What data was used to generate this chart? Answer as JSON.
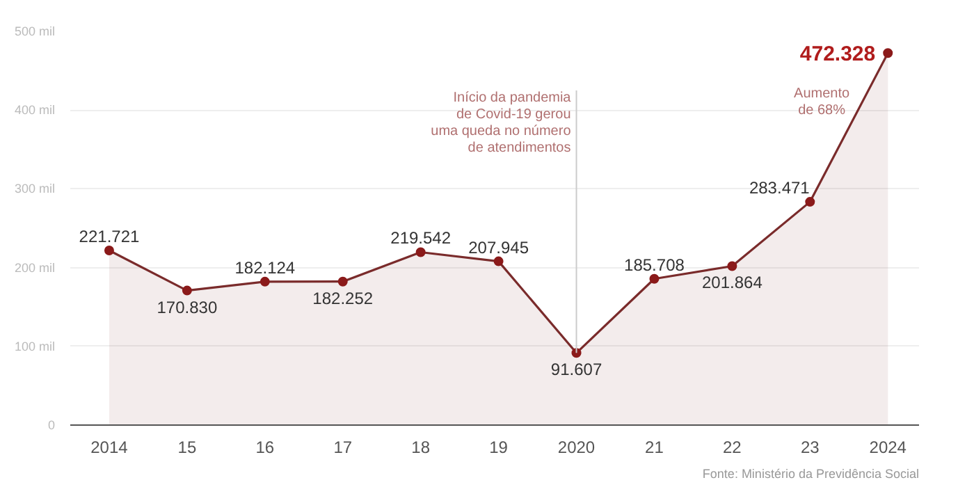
{
  "chart_data": {
    "type": "area",
    "x": [
      2014,
      2015,
      2016,
      2017,
      2018,
      2019,
      2020,
      2021,
      2022,
      2023,
      2024
    ],
    "series": [
      {
        "color": "#7a2b2b",
        "values": [
          221.721,
          170.83,
          182.124,
          182.252,
          219.542,
          207.945,
          91.607,
          185.708,
          201.864,
          283.471,
          472.328
        ],
        "value_labels": [
          "221.721",
          "170.830",
          "182.124",
          "182.252",
          "219.542",
          "207.945",
          "91.607",
          "185.708",
          "201.864",
          "283.471",
          "472.328"
        ]
      }
    ],
    "xlim": [
      2013.5,
      2024.4
    ],
    "xticks": [
      2014,
      {
        "value": 2015,
        "label": "15"
      },
      {
        "value": 2016,
        "label": "16"
      },
      {
        "value": 2017,
        "label": "17"
      },
      {
        "value": 2018,
        "label": "18"
      },
      {
        "value": 2019,
        "label": "19"
      },
      2020,
      {
        "value": 2021,
        "label": "21"
      },
      {
        "value": 2022,
        "label": "22"
      },
      {
        "value": 2023,
        "label": "23"
      },
      2024
    ],
    "ylim": [
      0,
      500
    ],
    "yticks": [
      0,
      {
        "value": 100,
        "label": "100 mil"
      },
      {
        "value": 200,
        "label": "200 mil"
      },
      {
        "value": 300,
        "label": "300 mil"
      },
      {
        "value": 400,
        "label": "400 mil"
      },
      {
        "value": 500,
        "label": "500 mil"
      }
    ],
    "grid": "y",
    "marker": "circle",
    "annotations": [
      {
        "text": "Início da pandemia\nde Covid-19 gerou\numa queda no número\nde atendimentos",
        "x": 2020,
        "y": 91.607
      },
      "Aumento\nde 68%",
      "Fonte: Ministério da Previdência Social"
    ]
  }
}
